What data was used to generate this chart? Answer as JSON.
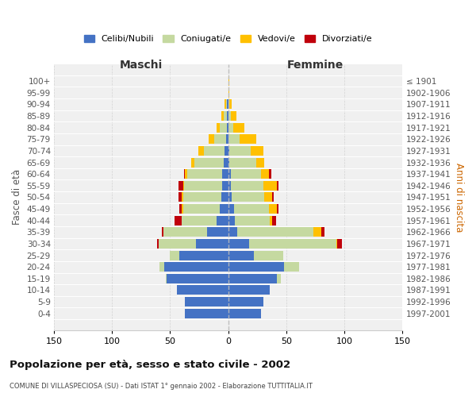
{
  "age_groups": [
    "100+",
    "95-99",
    "90-94",
    "85-89",
    "80-84",
    "75-79",
    "70-74",
    "65-69",
    "60-64",
    "55-59",
    "50-54",
    "45-49",
    "40-44",
    "35-39",
    "30-34",
    "25-29",
    "20-24",
    "15-19",
    "10-14",
    "5-9",
    "0-4"
  ],
  "birth_years": [
    "≤ 1901",
    "1902-1906",
    "1907-1911",
    "1912-1916",
    "1917-1921",
    "1922-1926",
    "1927-1931",
    "1932-1936",
    "1937-1941",
    "1942-1946",
    "1947-1951",
    "1952-1956",
    "1957-1961",
    "1962-1966",
    "1967-1971",
    "1972-1976",
    "1977-1981",
    "1982-1986",
    "1987-1991",
    "1992-1996",
    "1997-2001"
  ],
  "colors": {
    "celibi": "#4472c4",
    "coniugati": "#c5d9a0",
    "vedovi": "#ffc000",
    "divorziati": "#c0000b"
  },
  "maschi_celibi": [
    0,
    0,
    1,
    1,
    1,
    2,
    3,
    4,
    5,
    5,
    6,
    7,
    10,
    18,
    28,
    42,
    55,
    53,
    44,
    37,
    37
  ],
  "maschi_coniugati": [
    0,
    0,
    1,
    3,
    6,
    10,
    18,
    25,
    30,
    33,
    33,
    32,
    30,
    38,
    32,
    8,
    4,
    1,
    0,
    0,
    0
  ],
  "maschi_vedovi": [
    0,
    0,
    1,
    2,
    3,
    5,
    5,
    3,
    2,
    1,
    1,
    1,
    0,
    0,
    0,
    0,
    0,
    0,
    0,
    0,
    0
  ],
  "maschi_divorziati": [
    0,
    0,
    0,
    0,
    0,
    0,
    0,
    0,
    1,
    4,
    3,
    2,
    6,
    1,
    1,
    0,
    0,
    0,
    0,
    0,
    0
  ],
  "femmine_celibi": [
    0,
    0,
    0,
    0,
    0,
    0,
    1,
    1,
    2,
    2,
    3,
    5,
    6,
    8,
    18,
    22,
    48,
    42,
    36,
    30,
    28
  ],
  "femmine_coniugati": [
    0,
    0,
    1,
    2,
    4,
    10,
    18,
    23,
    26,
    28,
    28,
    30,
    30,
    65,
    75,
    25,
    13,
    3,
    0,
    0,
    0
  ],
  "femmine_vedovi": [
    1,
    1,
    2,
    5,
    10,
    14,
    11,
    7,
    7,
    12,
    7,
    7,
    2,
    7,
    1,
    0,
    0,
    0,
    0,
    0,
    0
  ],
  "femmine_divorziati": [
    0,
    0,
    0,
    0,
    0,
    0,
    0,
    0,
    2,
    1,
    1,
    1,
    3,
    3,
    4,
    0,
    0,
    0,
    0,
    0,
    0
  ],
  "xlim": 150,
  "title": "Popolazione per età, sesso e stato civile - 2002",
  "subtitle": "COMUNE DI VILLASPECIOSA (SU) - Dati ISTAT 1° gennaio 2002 - Elaborazione TUTTITALIA.IT",
  "ylabel_left": "Fasce di età",
  "ylabel_right": "Anni di nascita",
  "legend_labels": [
    "Celibi/Nubili",
    "Coniugati/e",
    "Vedovi/e",
    "Divorziati/e"
  ]
}
